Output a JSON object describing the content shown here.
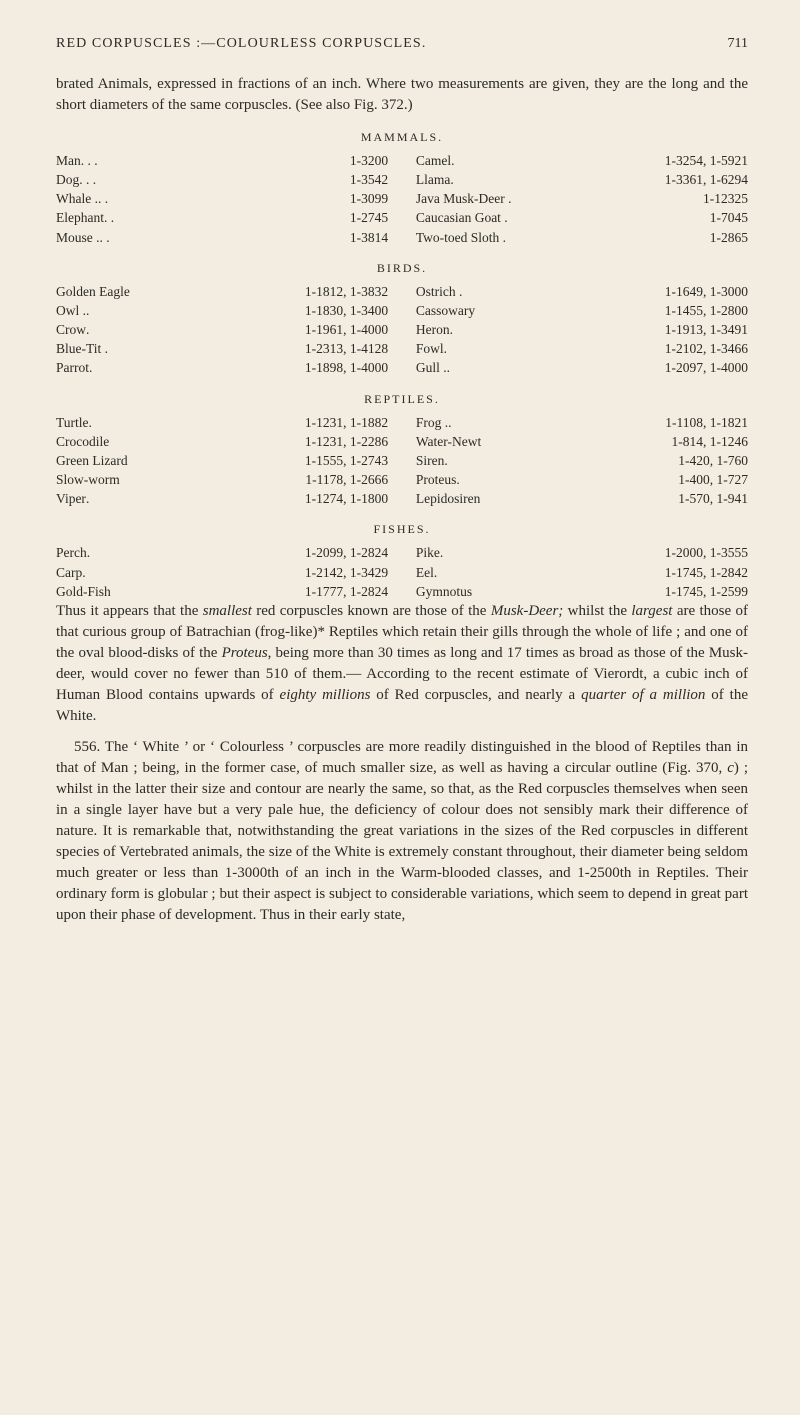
{
  "header": {
    "running_title": "RED CORPUSCLES :—COLOURLESS CORPUSCLES.",
    "page_number": "711"
  },
  "intro": "brated Animals, expressed in fractions of an inch. Where two measurements are given, they are the long and the short diameters of the same corpuscles. (See also Fig. 372.)",
  "tables": [
    {
      "heading": "MAMMALS.",
      "left": [
        {
          "name": "Man",
          "dots": " .   .   .",
          "vals": "1-3200"
        },
        {
          "name": "Dog",
          "dots": " .   .   .",
          "vals": "1-3542"
        },
        {
          "name": "Whale .",
          "dots": "   .   .",
          "vals": "1-3099"
        },
        {
          "name": "Elephant",
          "dots": "  .   .",
          "vals": "1-2745"
        },
        {
          "name": "Mouse .",
          "dots": "   .   .",
          "vals": "1-3814"
        }
      ],
      "right": [
        {
          "name": "Camel",
          "dots": "   .",
          "vals": "1-3254, 1-5921"
        },
        {
          "name": "Llama",
          "dots": "   .",
          "vals": "1-3361, 1-6294"
        },
        {
          "name": "Java Musk-Deer .",
          "dots": "",
          "vals": "1-12325"
        },
        {
          "name": "Caucasian Goat .",
          "dots": "",
          "vals": "1-7045"
        },
        {
          "name": "Two-toed Sloth .",
          "dots": "",
          "vals": "1-2865"
        }
      ]
    },
    {
      "heading": "BIRDS.",
      "left": [
        {
          "name": "Golden Eagle",
          "dots": "",
          "vals": "1-1812, 1-3832"
        },
        {
          "name": "Owl .",
          "dots": "   .",
          "vals": "1-1830, 1-3400"
        },
        {
          "name": "Crow",
          "dots": "    .",
          "vals": "1-1961, 1-4000"
        },
        {
          "name": "Blue-Tit .",
          "dots": "",
          "vals": "1-2313, 1-4128"
        },
        {
          "name": "Parrot",
          "dots": "   .",
          "vals": "1-1898, 1-4000"
        }
      ],
      "right": [
        {
          "name": "Ostrich  .",
          "dots": "",
          "vals": "1-1649, 1-3000"
        },
        {
          "name": "Cassowary",
          "dots": "",
          "vals": "1-1455, 1-2800"
        },
        {
          "name": "Heron",
          "dots": "   .",
          "vals": "1-1913, 1-3491"
        },
        {
          "name": "Fowl",
          "dots": "    .",
          "vals": "1-2102, 1-3466"
        },
        {
          "name": "Gull .",
          "dots": "   .",
          "vals": "1-2097, 1-4000"
        }
      ]
    },
    {
      "heading": "REPTILES.",
      "left": [
        {
          "name": "Turtle",
          "dots": "   .",
          "vals": "1-1231, 1-1882"
        },
        {
          "name": "Crocodile",
          "dots": "",
          "vals": "1-1231, 1-2286"
        },
        {
          "name": "Green Lizard",
          "dots": "",
          "vals": "1-1555, 1-2743"
        },
        {
          "name": "Slow-worm",
          "dots": "",
          "vals": "1-1178, 1-2666"
        },
        {
          "name": "Viper",
          "dots": "   .",
          "vals": "1-1274, 1-1800"
        }
      ],
      "right": [
        {
          "name": "Frog .",
          "dots": "   .",
          "vals": "1-1108, 1-1821"
        },
        {
          "name": "Water-Newt",
          "dots": "",
          "vals": "1-814, 1-1246"
        },
        {
          "name": "Siren",
          "dots": "   .",
          "vals": "1-420, 1-760"
        },
        {
          "name": "Proteus",
          "dots": "  .",
          "vals": "1-400, 1-727"
        },
        {
          "name": "Lepidosiren",
          "dots": "",
          "vals": "1-570, 1-941"
        }
      ]
    },
    {
      "heading": "FISHES.",
      "left": [
        {
          "name": "Perch",
          "dots": "   .",
          "vals": "1-2099, 1-2824"
        },
        {
          "name": "Carp",
          "dots": "    .",
          "vals": "1-2142, 1-3429"
        },
        {
          "name": "Gold-Fish",
          "dots": "",
          "vals": "1-1777, 1-2824"
        }
      ],
      "right": [
        {
          "name": "Pike",
          "dots": "    .",
          "vals": "1-2000, 1-3555"
        },
        {
          "name": "Eel",
          "dots": "     .",
          "vals": "1-1745, 1-2842"
        },
        {
          "name": "Gymnotus",
          "dots": "",
          "vals": "1-1745, 1-2599"
        }
      ]
    }
  ],
  "paras": {
    "p2_html": "Thus it appears that the <i>smallest</i> red corpuscles known are those of the <i>Musk-Deer;</i> whilst the <i>largest</i> are those of that curious group of Batrachian (frog-like)* Reptiles which retain their gills through the whole of life ; and one of the oval blood-disks of the <i>Proteus</i>, being more than 30 times as long and 17 times as broad as those of the Musk-deer, would cover no fewer than 510 of them.— According to the recent estimate of Vierordt, a cubic inch of Human Blood contains upwards of <i>eighty millions</i> of Red corpuscles, and nearly a <i>quarter of a million</i> of the White.",
    "p3_html": "556. The ‘ White ’ or ‘ Colourless ’ corpuscles are more readily distinguished in the blood of Reptiles than in that of Man ; being, in the former case, of much smaller size, as well as having a circular outline (Fig. 370, <i>c</i>) ; whilst in the latter their size and contour are nearly the same, so that, as the Red corpuscles themselves when seen in a single layer have but a very pale hue, the deficiency of colour does not sensibly mark their difference of nature. It is remarkable that, notwithstanding the great variations in the sizes of the Red corpuscles in different species of Vertebrated animals, the size of the White is extremely constant throughout, their diameter being seldom much greater or less than 1-3000th of an inch in the Warm-blooded classes, and 1-2500th in Reptiles. Their ordinary form is globular ; but their aspect is subject to considerable variations, which seem to depend in great part upon their phase of development. Thus in their early state,"
  }
}
